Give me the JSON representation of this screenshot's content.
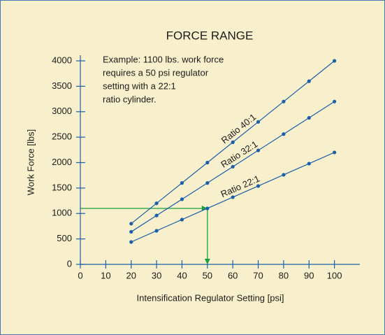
{
  "chart_data": {
    "type": "line",
    "title": "FORCE RANGE",
    "annotation": [
      "Example: 1100 lbs. work force",
      "requires a 50 psi regulator",
      "setting with a 22:1",
      "ratio cylinder."
    ],
    "xlabel": "Intensification Regulator Setting [psi]",
    "ylabel": "Work Force [lbs]",
    "x": [
      20,
      30,
      40,
      50,
      60,
      70,
      80,
      90,
      100
    ],
    "series": [
      {
        "name": "Ratio 40:1",
        "color": "#1a5fa8",
        "values": [
          800,
          1200,
          1600,
          2000,
          2400,
          2800,
          3200,
          3600,
          4000
        ]
      },
      {
        "name": "Ratio 32:1",
        "color": "#1a5fa8",
        "values": [
          640,
          960,
          1280,
          1600,
          1920,
          2240,
          2560,
          2880,
          3200
        ]
      },
      {
        "name": "Ratio 22:1",
        "color": "#1a5fa8",
        "values": [
          440,
          660,
          880,
          1100,
          1320,
          1540,
          1760,
          1980,
          2200
        ]
      }
    ],
    "highlight": {
      "x": 50,
      "y": 1100,
      "color": "#1a9e3c"
    },
    "xlim": [
      0,
      110
    ],
    "ylim": [
      0,
      4000
    ],
    "xticks": [
      0,
      10,
      20,
      30,
      40,
      50,
      60,
      70,
      80,
      90,
      100
    ],
    "yticks": [
      0,
      500,
      1000,
      1500,
      2000,
      2500,
      3000,
      3500,
      4000
    ],
    "axis_color": "#1a5fa8"
  }
}
